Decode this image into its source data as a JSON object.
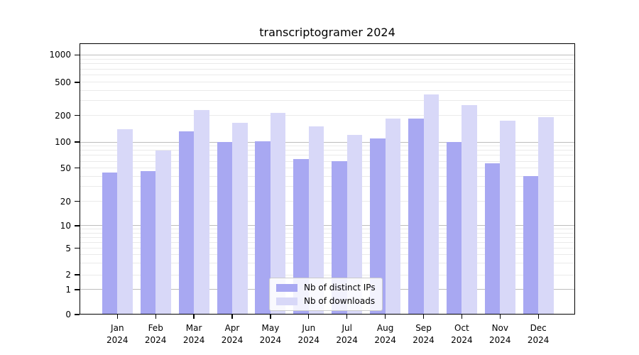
{
  "figure": {
    "background": "#ffffff"
  },
  "chart_data": {
    "type": "bar",
    "title": "transcriptogramer 2024",
    "categories": [
      "Jan\n2024",
      "Feb\n2024",
      "Mar\n2024",
      "Apr\n2024",
      "May\n2024",
      "Jun\n2024",
      "Jul\n2024",
      "Aug\n2024",
      "Sep\n2024",
      "Oct\n2024",
      "Nov\n2024",
      "Dec\n2024"
    ],
    "series": [
      {
        "name": "Nb of distinct IPs",
        "color": "#a8a8f2",
        "values": [
          44,
          46,
          132,
          101,
          102,
          64,
          60,
          110,
          186,
          101,
          57,
          40
        ]
      },
      {
        "name": "Nb of downloads",
        "color": "#d8d8f8",
        "values": [
          140,
          80,
          230,
          165,
          215,
          150,
          120,
          185,
          355,
          265,
          175,
          190
        ]
      }
    ],
    "xlabel": "",
    "ylabel": "",
    "yscale": "symlog",
    "yticks": [
      0,
      1,
      2,
      5,
      10,
      20,
      50,
      100,
      200,
      500,
      1000
    ],
    "yscale_anchors": [
      [
        0,
        0.0
      ],
      [
        1,
        0.0919
      ],
      [
        2,
        0.1462
      ],
      [
        5,
        0.2441
      ],
      [
        10,
        0.3273
      ],
      [
        20,
        0.4173
      ],
      [
        50,
        0.5398
      ],
      [
        100,
        0.6359
      ],
      [
        200,
        0.7341
      ],
      [
        500,
        0.8564
      ],
      [
        1000,
        0.9572
      ]
    ],
    "grid": "horizontal major+minor",
    "major_grid_values": [
      1,
      10,
      100,
      1000
    ],
    "legend_position": "lower center",
    "colors": {
      "major_grid": "#bdbdbd",
      "minor_grid": "#eaeaea",
      "axis": "#000000",
      "legend_border": "#cccccc"
    }
  }
}
